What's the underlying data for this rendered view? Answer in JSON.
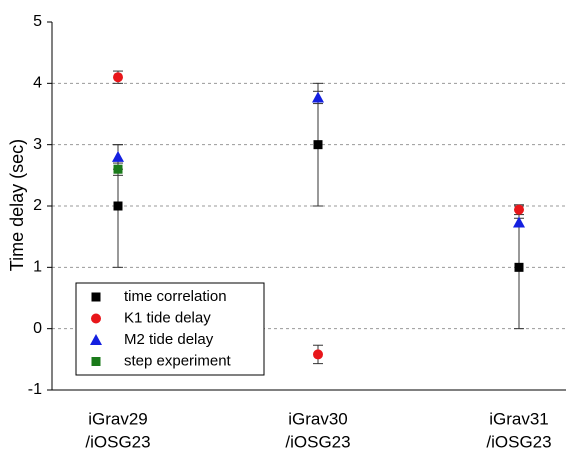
{
  "chart_data": {
    "type": "errorbar",
    "y_label": "Time delay (sec)",
    "categories": [
      [
        "iGrav29",
        "/iOSG23"
      ],
      [
        "iGrav30",
        "/iOSG23"
      ],
      [
        "iGrav31",
        "/iOSG23"
      ]
    ],
    "series": [
      {
        "name": "time correlation",
        "color": "#000000",
        "marker": "square",
        "values": [
          2,
          3,
          1
        ],
        "errors": [
          1,
          1,
          1
        ]
      },
      {
        "name": "K1 tide delay",
        "color": "#e8161a",
        "marker": "circle",
        "values": [
          4.1,
          -0.42,
          1.94
        ],
        "errors": [
          0.1,
          0.15,
          0.08
        ]
      },
      {
        "name": "M2 tide delay",
        "color": "#1420e0",
        "marker": "triangle",
        "values": [
          2.8,
          3.77,
          1.73
        ],
        "errors": [
          0.2,
          0.1,
          0.07
        ]
      },
      {
        "name": "step experiment",
        "color": "#1a7a1a",
        "marker": "square",
        "values": [
          2.6,
          null,
          null
        ],
        "errors": [
          0.1,
          null,
          null
        ]
      }
    ],
    "ylim": [
      -1,
      5
    ],
    "yticks": [
      -1,
      0,
      1,
      2,
      3,
      4,
      5
    ],
    "grid": true,
    "legend": "lower left"
  }
}
